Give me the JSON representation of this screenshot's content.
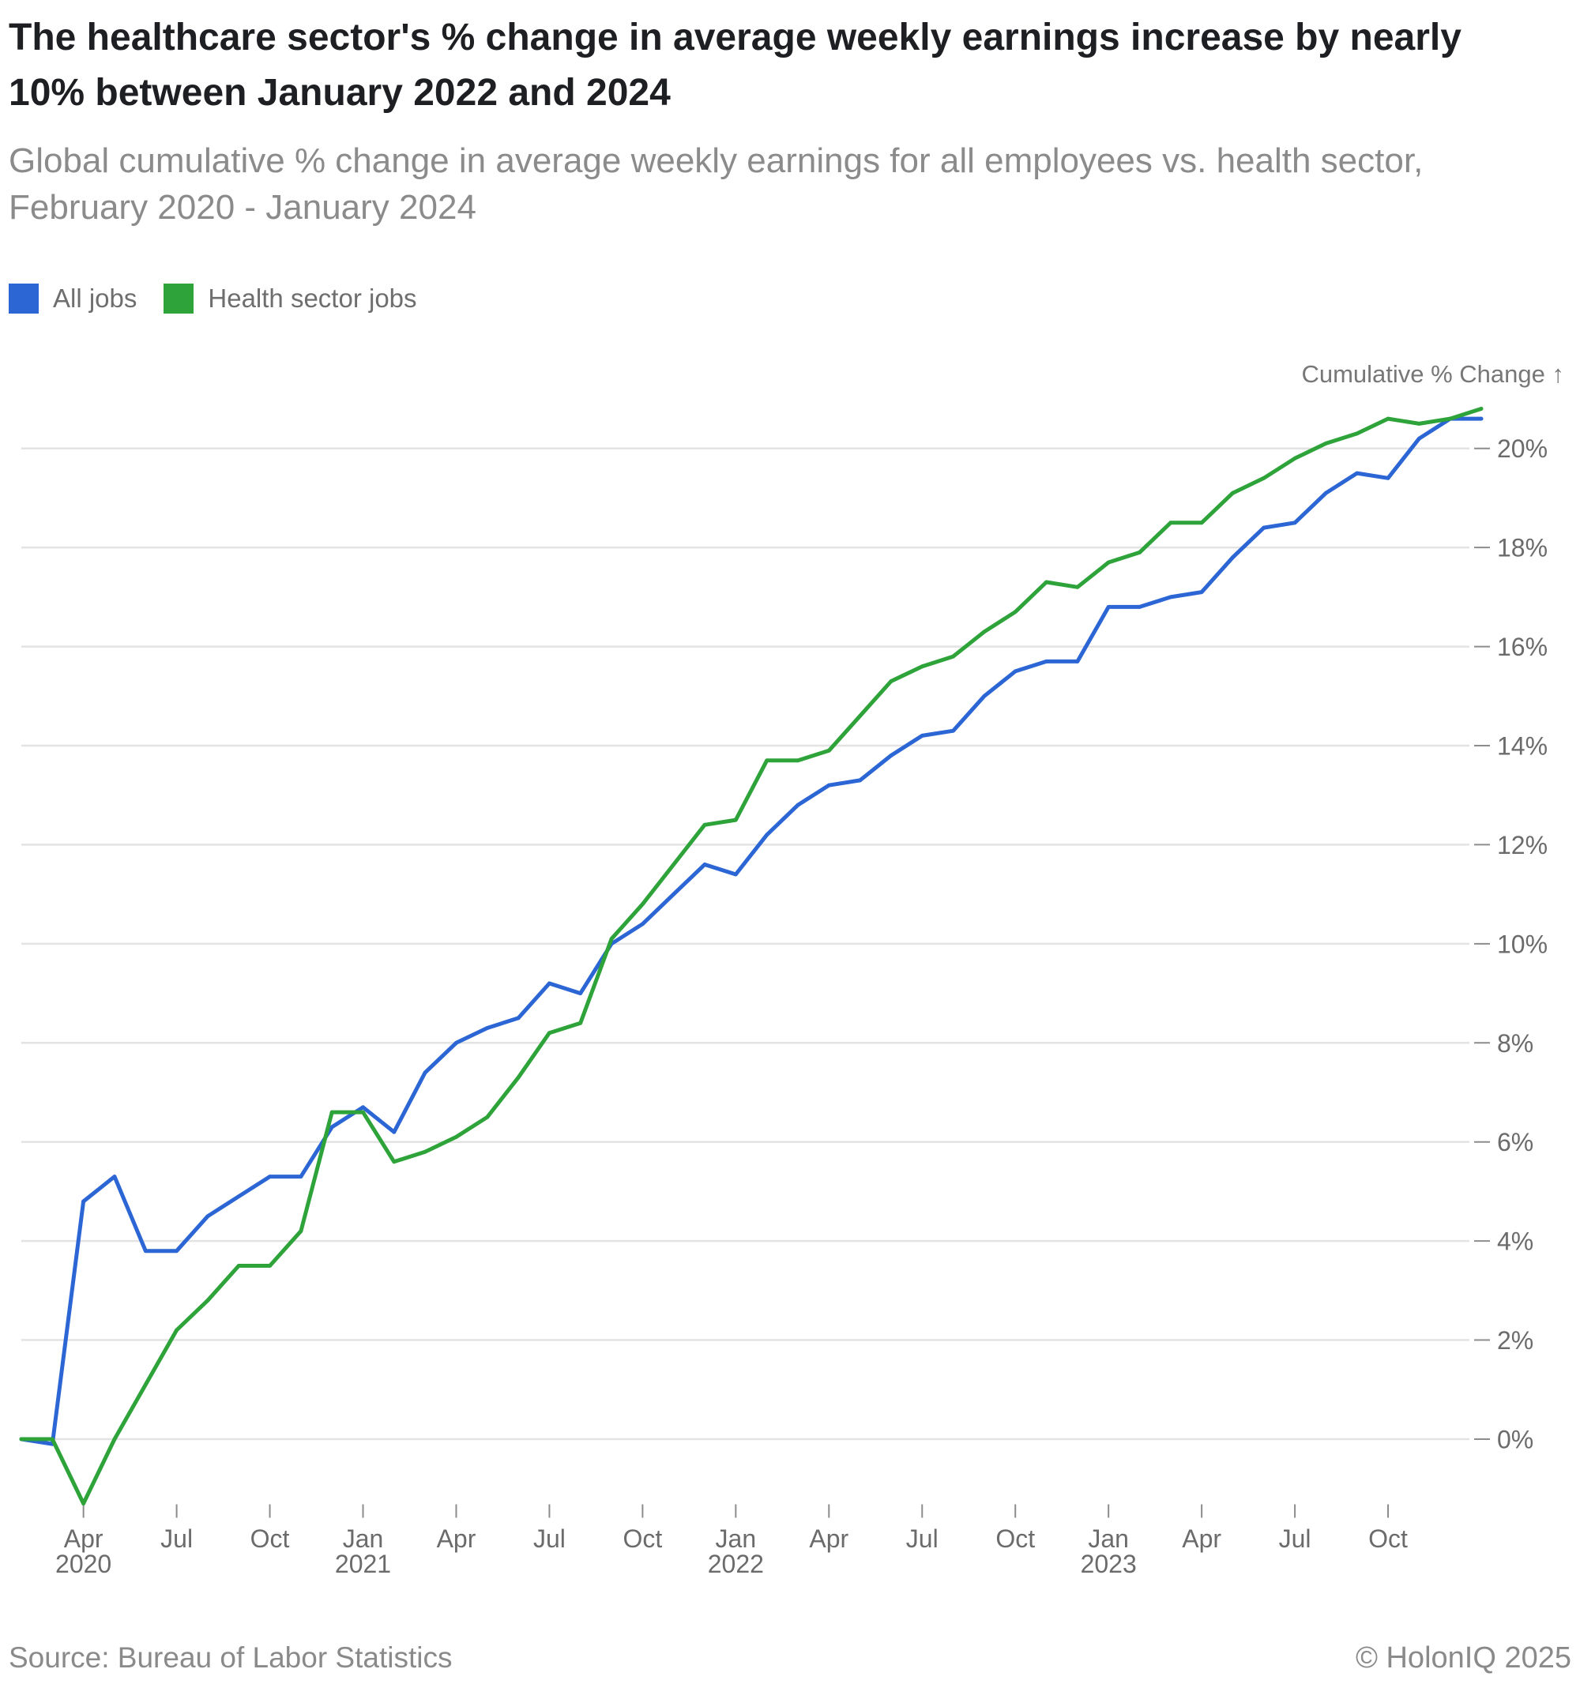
{
  "footer": {
    "source": "Source: Bureau of Labor Statistics",
    "credit": "© HolonIQ 2025"
  },
  "chart_data": {
    "type": "line",
    "title": "The healthcare sector's % change in average weekly earnings increase by nearly 10% between January 2022 and 2024",
    "subtitle": "Global cumulative % change in average weekly earnings for all employees vs. health sector, February 2020 - January 2024",
    "xlabel": "",
    "ylabel": "Cumulative % Change ↑",
    "ylim": [
      -1.3,
      21
    ],
    "grid": true,
    "x": [
      {
        "year": 2020,
        "month": 2
      },
      {
        "year": 2020,
        "month": 3
      },
      {
        "year": 2020,
        "month": 4
      },
      {
        "year": 2020,
        "month": 5
      },
      {
        "year": 2020,
        "month": 6
      },
      {
        "year": 2020,
        "month": 7
      },
      {
        "year": 2020,
        "month": 8
      },
      {
        "year": 2020,
        "month": 9
      },
      {
        "year": 2020,
        "month": 10
      },
      {
        "year": 2020,
        "month": 11
      },
      {
        "year": 2020,
        "month": 12
      },
      {
        "year": 2021,
        "month": 1
      },
      {
        "year": 2021,
        "month": 2
      },
      {
        "year": 2021,
        "month": 3
      },
      {
        "year": 2021,
        "month": 4
      },
      {
        "year": 2021,
        "month": 5
      },
      {
        "year": 2021,
        "month": 6
      },
      {
        "year": 2021,
        "month": 7
      },
      {
        "year": 2021,
        "month": 8
      },
      {
        "year": 2021,
        "month": 9
      },
      {
        "year": 2021,
        "month": 10
      },
      {
        "year": 2021,
        "month": 11
      },
      {
        "year": 2021,
        "month": 12
      },
      {
        "year": 2022,
        "month": 1
      },
      {
        "year": 2022,
        "month": 2
      },
      {
        "year": 2022,
        "month": 3
      },
      {
        "year": 2022,
        "month": 4
      },
      {
        "year": 2022,
        "month": 5
      },
      {
        "year": 2022,
        "month": 6
      },
      {
        "year": 2022,
        "month": 7
      },
      {
        "year": 2022,
        "month": 8
      },
      {
        "year": 2022,
        "month": 9
      },
      {
        "year": 2022,
        "month": 10
      },
      {
        "year": 2022,
        "month": 11
      },
      {
        "year": 2022,
        "month": 12
      },
      {
        "year": 2023,
        "month": 1
      },
      {
        "year": 2023,
        "month": 2
      },
      {
        "year": 2023,
        "month": 3
      },
      {
        "year": 2023,
        "month": 4
      },
      {
        "year": 2023,
        "month": 5
      },
      {
        "year": 2023,
        "month": 6
      },
      {
        "year": 2023,
        "month": 7
      },
      {
        "year": 2023,
        "month": 8
      },
      {
        "year": 2023,
        "month": 9
      },
      {
        "year": 2023,
        "month": 10
      },
      {
        "year": 2023,
        "month": 11
      },
      {
        "year": 2023,
        "month": 12
      },
      {
        "year": 2024,
        "month": 1
      }
    ],
    "xticks": [
      {
        "year": 2020,
        "month": 4,
        "label": "Apr",
        "sublabel": "2020"
      },
      {
        "year": 2020,
        "month": 7,
        "label": "Jul"
      },
      {
        "year": 2020,
        "month": 10,
        "label": "Oct"
      },
      {
        "year": 2021,
        "month": 1,
        "label": "Jan",
        "sublabel": "2021"
      },
      {
        "year": 2021,
        "month": 4,
        "label": "Apr"
      },
      {
        "year": 2021,
        "month": 7,
        "label": "Jul"
      },
      {
        "year": 2021,
        "month": 10,
        "label": "Oct"
      },
      {
        "year": 2022,
        "month": 1,
        "label": "Jan",
        "sublabel": "2022"
      },
      {
        "year": 2022,
        "month": 4,
        "label": "Apr"
      },
      {
        "year": 2022,
        "month": 7,
        "label": "Jul"
      },
      {
        "year": 2022,
        "month": 10,
        "label": "Oct"
      },
      {
        "year": 2023,
        "month": 1,
        "label": "Jan",
        "sublabel": "2023"
      },
      {
        "year": 2023,
        "month": 4,
        "label": "Apr"
      },
      {
        "year": 2023,
        "month": 7,
        "label": "Jul"
      },
      {
        "year": 2023,
        "month": 10,
        "label": "Oct"
      }
    ],
    "yticks": [
      {
        "value": 0,
        "label": "0%"
      },
      {
        "value": 2,
        "label": "2%"
      },
      {
        "value": 4,
        "label": "4%"
      },
      {
        "value": 6,
        "label": "6%"
      },
      {
        "value": 8,
        "label": "8%"
      },
      {
        "value": 10,
        "label": "10%"
      },
      {
        "value": 12,
        "label": "12%"
      },
      {
        "value": 14,
        "label": "14%"
      },
      {
        "value": 16,
        "label": "16%"
      },
      {
        "value": 18,
        "label": "18%"
      },
      {
        "value": 20,
        "label": "20%"
      }
    ],
    "series": [
      {
        "name": "All jobs",
        "color": "#2b66d4",
        "values": [
          0,
          -0.1,
          4.8,
          5.3,
          3.8,
          3.8,
          4.5,
          4.9,
          5.3,
          5.3,
          6.3,
          6.7,
          6.2,
          7.4,
          8.0,
          8.3,
          8.5,
          9.2,
          9.0,
          10.0,
          10.4,
          11.0,
          11.6,
          11.4,
          12.2,
          12.8,
          13.2,
          13.3,
          13.8,
          14.2,
          14.3,
          15.0,
          15.5,
          15.7,
          15.7,
          16.8,
          16.8,
          17.0,
          17.1,
          17.8,
          18.4,
          18.5,
          19.1,
          19.5,
          19.4,
          20.2,
          20.6,
          20.6
        ]
      },
      {
        "name": "Health sector jobs",
        "color": "#2ea33a",
        "values": [
          0,
          0,
          -1.3,
          0.0,
          1.1,
          2.2,
          2.8,
          3.5,
          3.5,
          4.2,
          6.6,
          6.6,
          5.6,
          5.8,
          6.1,
          6.5,
          7.3,
          8.2,
          8.4,
          10.1,
          10.8,
          11.6,
          12.4,
          12.5,
          13.7,
          13.7,
          13.9,
          14.6,
          15.3,
          15.6,
          15.8,
          16.3,
          16.7,
          17.3,
          17.2,
          17.7,
          17.9,
          18.5,
          18.5,
          19.1,
          19.4,
          19.8,
          20.1,
          20.3,
          20.6,
          20.5,
          20.6,
          20.8
        ]
      }
    ]
  }
}
